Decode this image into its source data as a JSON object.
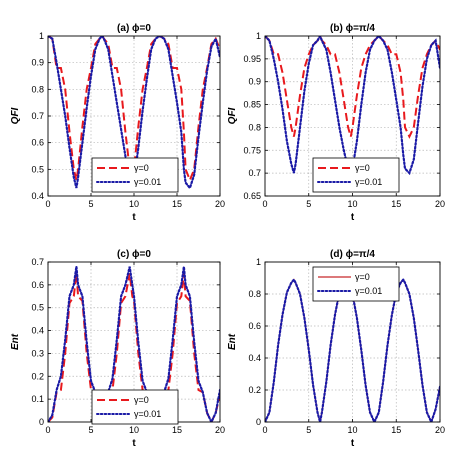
{
  "chart_data": [
    {
      "type": "line",
      "title": "(a) ϕ=0",
      "xlabel": "t",
      "ylabel": "QFI",
      "xlim": [
        0,
        20
      ],
      "ylim": [
        0.4,
        1
      ],
      "xticks": [
        "0",
        "5",
        "10",
        "15",
        "20"
      ],
      "yticks": [
        "0.4",
        "0.5",
        "0.6",
        "0.7",
        "0.8",
        "0.9",
        "1"
      ],
      "grid": true,
      "legend_position": "bottom-center",
      "series": [
        {
          "name": "γ=0",
          "color": "#e8191d",
          "style": "dashed",
          "x": [
            0,
            0.5,
            1.0,
            1.5,
            2.0,
            2.5,
            3.0,
            3.3,
            3.5,
            4.0,
            4.5,
            5.0,
            5.5,
            6.0,
            6.3,
            6.5,
            7.0,
            7.5,
            8.0,
            8.5,
            9.0,
            9.5,
            9.8,
            10.0,
            10.5,
            11.0,
            11.5,
            12.0,
            12.5,
            13.0,
            13.5,
            14.0,
            14.5,
            15.0,
            15.5,
            15.8,
            16.0,
            16.5,
            17.0,
            17.5,
            18.0,
            18.5,
            19.0,
            19.5,
            20.0
          ],
          "y": [
            1.0,
            0.99,
            0.88,
            0.88,
            0.8,
            0.64,
            0.5,
            0.46,
            0.5,
            0.66,
            0.8,
            0.88,
            0.97,
            0.99,
            1.0,
            0.99,
            0.97,
            0.88,
            0.88,
            0.8,
            0.64,
            0.5,
            0.46,
            0.5,
            0.66,
            0.8,
            0.88,
            0.97,
            0.99,
            1.0,
            0.99,
            0.97,
            0.88,
            0.88,
            0.8,
            0.64,
            0.5,
            0.46,
            0.5,
            0.66,
            0.8,
            0.88,
            0.97,
            0.99,
            0.95
          ]
        },
        {
          "name": "γ=0.01",
          "color": "#1a1aa6",
          "style": "dotted",
          "x": [
            0,
            0.5,
            1.0,
            1.5,
            2.0,
            2.5,
            3.0,
            3.3,
            3.5,
            4.0,
            4.5,
            5.0,
            5.5,
            6.0,
            6.3,
            6.5,
            7.0,
            7.5,
            8.0,
            8.5,
            9.0,
            9.5,
            9.8,
            10.0,
            10.5,
            11.0,
            11.5,
            12.0,
            12.5,
            13.0,
            13.5,
            14.0,
            14.5,
            15.0,
            15.5,
            15.8,
            16.0,
            16.5,
            17.0,
            17.5,
            18.0,
            18.5,
            19.0,
            19.5,
            20.0
          ],
          "y": [
            1.0,
            0.99,
            0.9,
            0.8,
            0.7,
            0.58,
            0.47,
            0.43,
            0.47,
            0.6,
            0.73,
            0.85,
            0.95,
            0.99,
            1.0,
            0.99,
            0.95,
            0.85,
            0.75,
            0.65,
            0.55,
            0.46,
            0.43,
            0.46,
            0.58,
            0.72,
            0.84,
            0.95,
            0.99,
            1.0,
            0.99,
            0.95,
            0.85,
            0.75,
            0.64,
            0.5,
            0.45,
            0.43,
            0.48,
            0.62,
            0.75,
            0.87,
            0.96,
            0.99,
            0.92
          ]
        }
      ]
    },
    {
      "type": "line",
      "title": "(b) ϕ=π/4",
      "xlabel": "t",
      "ylabel": "QFI",
      "xlim": [
        0,
        20
      ],
      "ylim": [
        0.65,
        1
      ],
      "xticks": [
        "0",
        "5",
        "10",
        "15",
        "20"
      ],
      "yticks": [
        "0.65",
        "0.7",
        "0.75",
        "0.8",
        "0.85",
        "0.9",
        "0.95",
        "1"
      ],
      "grid": true,
      "legend_position": "bottom-center",
      "series": [
        {
          "name": "γ=0",
          "color": "#e8191d",
          "style": "dashed",
          "x": [
            0,
            0.5,
            1.0,
            1.5,
            2.0,
            2.5,
            3.0,
            3.3,
            3.5,
            4.0,
            4.5,
            5.0,
            5.5,
            6.0,
            6.3,
            6.5,
            7.0,
            7.5,
            8.0,
            8.5,
            9.0,
            9.5,
            9.8,
            10.0,
            10.5,
            11.0,
            11.5,
            12.0,
            12.5,
            13.0,
            13.5,
            14.0,
            14.5,
            15.0,
            15.5,
            15.8,
            16.0,
            16.5,
            17.0,
            17.5,
            18.0,
            18.5,
            19.0,
            19.5,
            20.0
          ],
          "y": [
            1.0,
            0.99,
            0.96,
            0.96,
            0.92,
            0.86,
            0.8,
            0.78,
            0.8,
            0.87,
            0.93,
            0.96,
            0.98,
            0.99,
            1.0,
            0.99,
            0.98,
            0.96,
            0.96,
            0.92,
            0.86,
            0.8,
            0.78,
            0.8,
            0.87,
            0.93,
            0.96,
            0.98,
            0.99,
            1.0,
            0.99,
            0.98,
            0.96,
            0.96,
            0.92,
            0.86,
            0.8,
            0.78,
            0.8,
            0.87,
            0.93,
            0.96,
            0.98,
            0.99,
            0.97
          ]
        },
        {
          "name": "γ=0.01",
          "color": "#1a1aa6",
          "style": "dotted",
          "x": [
            0,
            0.5,
            1.0,
            1.5,
            2.0,
            2.5,
            3.0,
            3.3,
            3.5,
            4.0,
            4.5,
            5.0,
            5.5,
            6.0,
            6.3,
            6.5,
            7.0,
            7.5,
            8.0,
            8.5,
            9.0,
            9.5,
            9.8,
            10.0,
            10.5,
            11.0,
            11.5,
            12.0,
            12.5,
            13.0,
            13.5,
            14.0,
            14.5,
            15.0,
            15.5,
            15.8,
            16.0,
            16.5,
            17.0,
            17.5,
            18.0,
            18.5,
            19.0,
            19.5,
            20.0
          ],
          "y": [
            1.0,
            0.99,
            0.95,
            0.9,
            0.84,
            0.77,
            0.72,
            0.7,
            0.72,
            0.8,
            0.88,
            0.94,
            0.98,
            0.99,
            1.0,
            0.99,
            0.97,
            0.92,
            0.86,
            0.8,
            0.75,
            0.71,
            0.7,
            0.71,
            0.77,
            0.85,
            0.92,
            0.97,
            0.99,
            1.0,
            0.99,
            0.97,
            0.92,
            0.86,
            0.8,
            0.74,
            0.71,
            0.7,
            0.73,
            0.81,
            0.89,
            0.95,
            0.98,
            0.99,
            0.93
          ]
        }
      ]
    },
    {
      "type": "line",
      "title": "(c) ϕ=0",
      "xlabel": "t",
      "ylabel": "Ent",
      "xlim": [
        0,
        20
      ],
      "ylim": [
        0,
        0.7
      ],
      "xticks": [
        "0",
        "5",
        "10",
        "15",
        "20"
      ],
      "yticks": [
        "0",
        "0.1",
        "0.2",
        "0.3",
        "0.4",
        "0.5",
        "0.6",
        "0.7"
      ],
      "grid": true,
      "legend_position": "bottom-center",
      "series": [
        {
          "name": "γ=0",
          "color": "#e8191d",
          "style": "dashed",
          "x": [
            0,
            0.5,
            1.0,
            1.5,
            2.0,
            2.5,
            3.0,
            3.3,
            3.5,
            4.0,
            4.5,
            5.0,
            5.5,
            6.0,
            6.3,
            6.5,
            7.0,
            7.5,
            8.0,
            8.5,
            9.0,
            9.5,
            9.8,
            10.0,
            10.5,
            11.0,
            11.5,
            12.0,
            12.5,
            13.0,
            13.5,
            14.0,
            14.5,
            15.0,
            15.5,
            15.8,
            16.0,
            16.5,
            17.0,
            17.5,
            18.0,
            18.5,
            19.0,
            19.5,
            20.0
          ],
          "y": [
            0.0,
            0.02,
            0.13,
            0.14,
            0.3,
            0.52,
            0.55,
            0.65,
            0.55,
            0.53,
            0.3,
            0.14,
            0.13,
            0.04,
            0.0,
            0.04,
            0.13,
            0.14,
            0.3,
            0.52,
            0.55,
            0.65,
            0.55,
            0.53,
            0.3,
            0.14,
            0.13,
            0.04,
            0.0,
            0.04,
            0.13,
            0.14,
            0.3,
            0.52,
            0.55,
            0.65,
            0.55,
            0.53,
            0.3,
            0.14,
            0.13,
            0.04,
            0.0,
            0.04,
            0.12
          ]
        },
        {
          "name": "γ=0.01",
          "color": "#1a1aa6",
          "style": "dotted",
          "x": [
            0,
            0.5,
            1.0,
            1.5,
            2.0,
            2.5,
            3.0,
            3.3,
            3.5,
            4.0,
            4.5,
            5.0,
            5.5,
            6.0,
            6.3,
            6.5,
            7.0,
            7.5,
            8.0,
            8.5,
            9.0,
            9.5,
            9.8,
            10.0,
            10.5,
            11.0,
            11.5,
            12.0,
            12.5,
            13.0,
            13.5,
            14.0,
            14.5,
            15.0,
            15.5,
            15.8,
            16.0,
            16.5,
            17.0,
            17.5,
            18.0,
            18.5,
            19.0,
            19.5,
            20.0
          ],
          "y": [
            0.0,
            0.03,
            0.14,
            0.2,
            0.36,
            0.55,
            0.6,
            0.68,
            0.6,
            0.55,
            0.35,
            0.18,
            0.13,
            0.04,
            0.0,
            0.04,
            0.13,
            0.19,
            0.36,
            0.55,
            0.6,
            0.68,
            0.6,
            0.55,
            0.35,
            0.18,
            0.13,
            0.04,
            0.0,
            0.04,
            0.13,
            0.19,
            0.36,
            0.55,
            0.6,
            0.68,
            0.6,
            0.55,
            0.35,
            0.18,
            0.13,
            0.04,
            0.0,
            0.04,
            0.14
          ]
        }
      ]
    },
    {
      "type": "line",
      "title": "(d) ϕ=π/4",
      "xlabel": "t",
      "ylabel": "Ent",
      "xlim": [
        0,
        20
      ],
      "ylim": [
        0,
        1
      ],
      "xticks": [
        "0",
        "5",
        "10",
        "15",
        "20"
      ],
      "yticks": [
        "0",
        "0.2",
        "0.4",
        "0.6",
        "0.8",
        "1"
      ],
      "grid": true,
      "legend_position": "top-center",
      "series": [
        {
          "name": "γ=0",
          "color": "#c8282a",
          "style": "solid",
          "x": [
            0,
            0.5,
            1.0,
            1.5,
            2.0,
            2.5,
            3.0,
            3.3,
            3.5,
            4.0,
            4.5,
            5.0,
            5.5,
            6.0,
            6.3,
            6.5,
            7.0,
            7.5,
            8.0,
            8.5,
            9.0,
            9.5,
            9.8,
            10.0,
            10.5,
            11.0,
            11.5,
            12.0,
            12.5,
            13.0,
            13.5,
            14.0,
            14.5,
            15.0,
            15.5,
            15.8,
            16.0,
            16.5,
            17.0,
            17.5,
            18.0,
            18.5,
            19.0,
            19.5,
            20.0
          ],
          "y": [
            0.0,
            0.06,
            0.25,
            0.48,
            0.67,
            0.81,
            0.87,
            0.89,
            0.87,
            0.8,
            0.65,
            0.45,
            0.23,
            0.06,
            0.0,
            0.06,
            0.25,
            0.48,
            0.67,
            0.81,
            0.87,
            0.89,
            0.87,
            0.8,
            0.65,
            0.45,
            0.23,
            0.06,
            0.0,
            0.06,
            0.25,
            0.48,
            0.67,
            0.81,
            0.87,
            0.89,
            0.87,
            0.8,
            0.65,
            0.45,
            0.23,
            0.06,
            0.0,
            0.08,
            0.22
          ]
        },
        {
          "name": "γ=0.01",
          "color": "#1a1aa6",
          "style": "dotted",
          "x": [
            0,
            0.5,
            1.0,
            1.5,
            2.0,
            2.5,
            3.0,
            3.3,
            3.5,
            4.0,
            4.5,
            5.0,
            5.5,
            6.0,
            6.3,
            6.5,
            7.0,
            7.5,
            8.0,
            8.5,
            9.0,
            9.5,
            9.8,
            10.0,
            10.5,
            11.0,
            11.5,
            12.0,
            12.5,
            13.0,
            13.5,
            14.0,
            14.5,
            15.0,
            15.5,
            15.8,
            16.0,
            16.5,
            17.0,
            17.5,
            18.0,
            18.5,
            19.0,
            19.5,
            20.0
          ],
          "y": [
            0.0,
            0.06,
            0.25,
            0.48,
            0.67,
            0.81,
            0.87,
            0.89,
            0.87,
            0.8,
            0.65,
            0.45,
            0.23,
            0.06,
            0.0,
            0.06,
            0.25,
            0.48,
            0.67,
            0.81,
            0.87,
            0.89,
            0.87,
            0.8,
            0.65,
            0.45,
            0.23,
            0.06,
            0.0,
            0.06,
            0.25,
            0.48,
            0.67,
            0.81,
            0.87,
            0.89,
            0.87,
            0.8,
            0.65,
            0.45,
            0.23,
            0.06,
            0.0,
            0.08,
            0.22
          ]
        }
      ]
    }
  ]
}
